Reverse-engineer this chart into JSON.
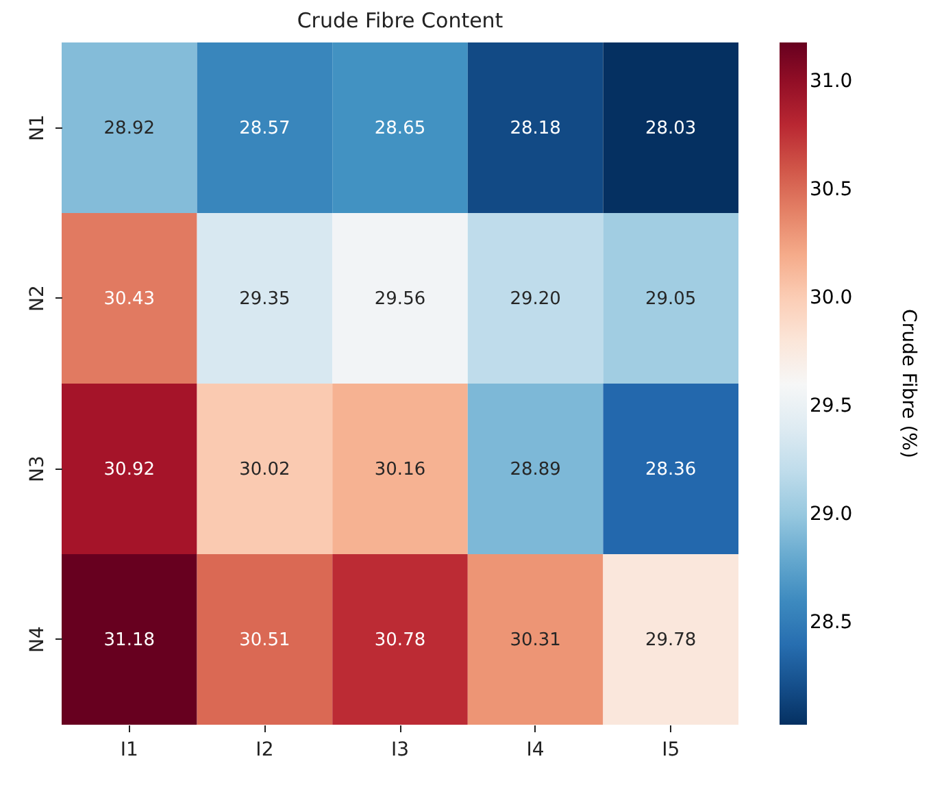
{
  "chart_data": {
    "type": "heatmap",
    "title": "Crude Fibre Content",
    "clabel": "Crude Fibre (%)",
    "categories": [
      "I1",
      "I2",
      "I3",
      "I4",
      "I5"
    ],
    "y_categories": [
      "N1",
      "N2",
      "N3",
      "N4"
    ],
    "cells": [
      [
        28.92,
        28.57,
        28.65,
        28.18,
        28.03
      ],
      [
        30.43,
        29.35,
        29.56,
        29.2,
        29.05
      ],
      [
        30.92,
        30.02,
        30.16,
        28.89,
        28.36
      ],
      [
        31.18,
        30.51,
        30.78,
        30.31,
        29.78
      ]
    ],
    "cell_labels": [
      [
        "28.92",
        "28.57",
        "28.65",
        "28.18",
        "28.03"
      ],
      [
        "30.43",
        "29.35",
        "29.56",
        "29.20",
        "29.05"
      ],
      [
        "30.92",
        "30.02",
        "30.16",
        "28.89",
        "28.36"
      ],
      [
        "31.18",
        "30.51",
        "30.78",
        "30.31",
        "29.78"
      ]
    ],
    "clim": [
      28.03,
      31.18
    ],
    "cticks": [
      28.5,
      {
        "value": 29,
        "label": "29.0"
      },
      29.5,
      {
        "value": 30,
        "label": "30.0"
      },
      30.5,
      {
        "value": 31,
        "label": "31.0"
      }
    ],
    "data_labels": true
  }
}
